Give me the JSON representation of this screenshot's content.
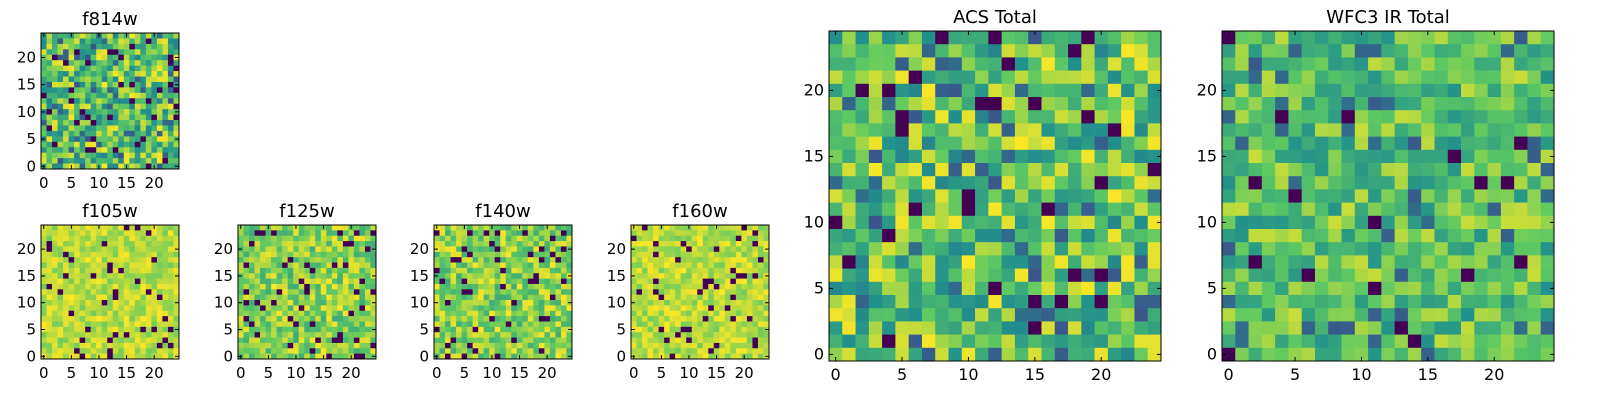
{
  "chart_data": [
    {
      "id": "f814w",
      "type": "heatmap",
      "title": "f814w",
      "grid": 25,
      "x_range": [
        0,
        24
      ],
      "y_range": [
        0,
        24
      ],
      "xticks": [
        0,
        5,
        10,
        15,
        20
      ],
      "yticks": [
        0,
        5,
        10,
        15,
        20
      ],
      "seed": 814,
      "style": "mixed"
    },
    {
      "id": "f105w",
      "type": "heatmap",
      "title": "f105w",
      "grid": 25,
      "x_range": [
        0,
        24
      ],
      "y_range": [
        0,
        24
      ],
      "xticks": [
        0,
        5,
        10,
        15,
        20
      ],
      "yticks": [
        0,
        5,
        10,
        15,
        20
      ],
      "seed": 105,
      "style": "bright"
    },
    {
      "id": "f125w",
      "type": "heatmap",
      "title": "f125w",
      "grid": 25,
      "x_range": [
        0,
        24
      ],
      "y_range": [
        0,
        24
      ],
      "xticks": [
        0,
        5,
        10,
        15,
        20
      ],
      "yticks": [
        0,
        5,
        10,
        15,
        20
      ],
      "seed": 125,
      "style": "bright-green"
    },
    {
      "id": "f140w",
      "type": "heatmap",
      "title": "f140w",
      "grid": 25,
      "x_range": [
        0,
        24
      ],
      "y_range": [
        0,
        24
      ],
      "xticks": [
        0,
        5,
        10,
        15,
        20
      ],
      "yticks": [
        0,
        5,
        10,
        15,
        20
      ],
      "seed": 140,
      "style": "bright-green"
    },
    {
      "id": "f160w",
      "type": "heatmap",
      "title": "f160w",
      "grid": 25,
      "x_range": [
        0,
        24
      ],
      "y_range": [
        0,
        24
      ],
      "xticks": [
        0,
        5,
        10,
        15,
        20
      ],
      "yticks": [
        0,
        5,
        10,
        15,
        20
      ],
      "seed": 160,
      "style": "bright"
    },
    {
      "id": "acs_total",
      "type": "heatmap",
      "title": "ACS Total",
      "grid": 25,
      "x_range": [
        0,
        24
      ],
      "y_range": [
        0,
        24
      ],
      "xticks": [
        0,
        5,
        10,
        15,
        20
      ],
      "yticks": [
        0,
        5,
        10,
        15,
        20
      ],
      "seed": 1001,
      "style": "mixed"
    },
    {
      "id": "wfc3_ir_total",
      "type": "heatmap",
      "title": "WFC3 IR Total",
      "grid": 25,
      "x_range": [
        0,
        24
      ],
      "y_range": [
        0,
        24
      ],
      "xticks": [
        0,
        5,
        10,
        15,
        20
      ],
      "yticks": [
        0,
        5,
        10,
        15,
        20
      ],
      "seed": 2002,
      "style": "green"
    }
  ],
  "colormap": {
    "name": "viridis",
    "stops": [
      "#440154",
      "#3b528b",
      "#21918c",
      "#5ec962",
      "#fde725"
    ]
  }
}
